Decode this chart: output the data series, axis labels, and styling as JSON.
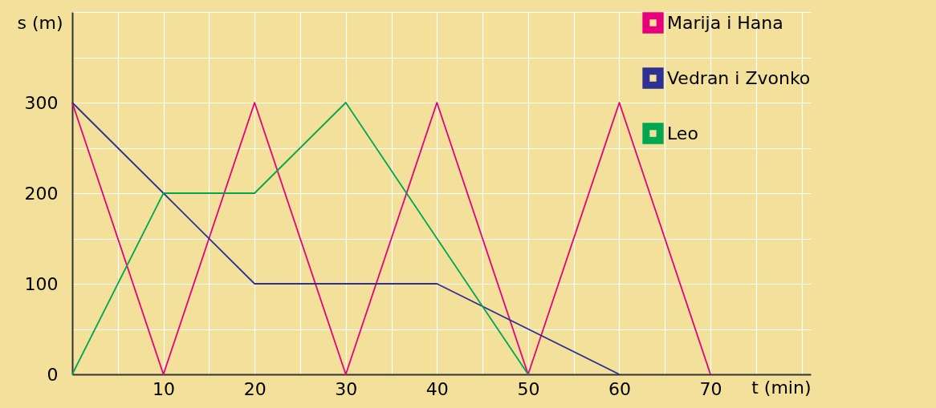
{
  "chart_data": {
    "type": "line",
    "xlabel": "t (min)",
    "ylabel": "s (m)",
    "xlim": [
      0,
      81
    ],
    "ylim": [
      0,
      400
    ],
    "xticks": [
      {
        "value": 0,
        "label": null
      },
      {
        "value": 5,
        "label": null
      },
      10,
      {
        "value": 15,
        "label": null
      },
      20,
      {
        "value": 25,
        "label": null
      },
      30,
      {
        "value": 35,
        "label": null
      },
      40,
      {
        "value": 45,
        "label": null
      },
      50,
      {
        "value": 55,
        "label": null
      },
      60,
      {
        "value": 65,
        "label": null
      },
      70,
      {
        "value": 75,
        "label": null
      },
      {
        "value": 80,
        "label": null
      }
    ],
    "yticks": [
      0,
      {
        "value": 50,
        "label": null
      },
      100,
      {
        "value": 150,
        "label": null
      },
      200,
      {
        "value": 250,
        "label": null
      },
      300,
      {
        "value": 350,
        "label": null
      },
      {
        "value": 400,
        "label": null
      }
    ],
    "grid": true,
    "legend": "top right",
    "marker": "none",
    "line_style": "solid",
    "series": [
      {
        "name": "Marija i Hana",
        "color": "#e6007e",
        "x": [
          0,
          10,
          20,
          30,
          40,
          50,
          60,
          70
        ],
        "values": [
          300,
          0,
          300,
          0,
          300,
          0,
          300,
          0
        ]
      },
      {
        "name": "Vedran i Zvonko",
        "color": "#2e3192",
        "x": [
          0,
          10,
          20,
          40,
          60
        ],
        "values": [
          300,
          200,
          100,
          100,
          0
        ]
      },
      {
        "name": "Leo",
        "color": "#00a650",
        "x": [
          0,
          10,
          20,
          30,
          50
        ],
        "values": [
          0,
          200,
          200,
          300,
          0
        ]
      }
    ]
  }
}
